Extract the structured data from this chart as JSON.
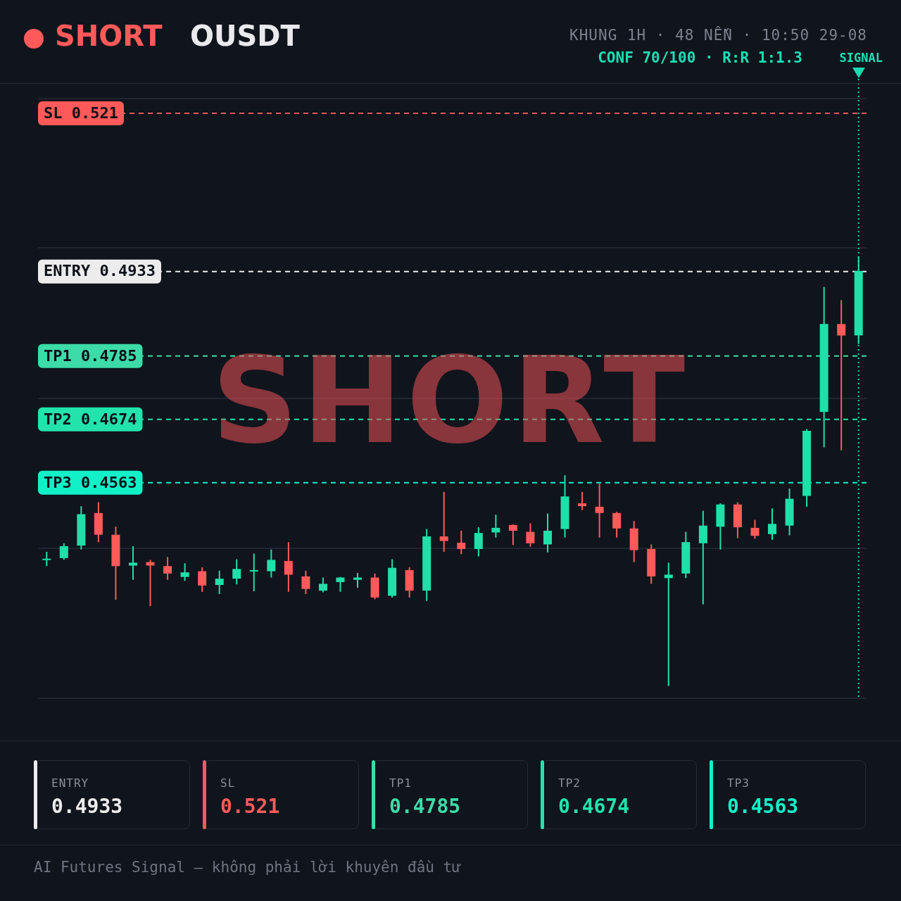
{
  "chart_data": {
    "type": "candlestick",
    "title": "SHORT",
    "subtitle": "OUSDT",
    "categories": [
      null,
      null,
      null,
      null,
      null,
      null,
      null,
      null,
      null,
      null,
      null,
      null,
      null,
      null,
      null,
      null,
      null,
      null,
      null,
      null,
      null,
      null,
      null,
      null,
      null,
      null,
      null,
      null,
      null,
      null,
      null,
      null,
      null,
      null,
      null,
      null,
      null,
      null,
      null,
      null,
      null,
      null,
      null,
      null,
      null,
      null,
      null,
      null
    ],
    "ohlc": [
      [
        0.4429,
        0.4442,
        0.4417,
        0.443
      ],
      [
        0.4431,
        0.4457,
        0.4428,
        0.4452
      ],
      [
        0.4453,
        0.4522,
        0.4446,
        0.4508
      ],
      [
        0.451,
        0.4529,
        0.4459,
        0.4472
      ],
      [
        0.4472,
        0.4486,
        0.4358,
        0.4417
      ],
      [
        0.4418,
        0.4452,
        0.4393,
        0.4423
      ],
      [
        0.4424,
        0.4428,
        0.4347,
        0.4418
      ],
      [
        0.4417,
        0.4433,
        0.4393,
        0.4404
      ],
      [
        0.4398,
        0.4422,
        0.4391,
        0.4406
      ],
      [
        0.4408,
        0.4415,
        0.4372,
        0.4383
      ],
      [
        0.4384,
        0.4409,
        0.4368,
        0.4395
      ],
      [
        0.4395,
        0.4429,
        0.4385,
        0.4412
      ],
      [
        0.4408,
        0.4439,
        0.4373,
        0.441
      ],
      [
        0.4408,
        0.4446,
        0.4397,
        0.4428
      ],
      [
        0.4426,
        0.4459,
        0.4372,
        0.4402
      ],
      [
        0.4399,
        0.4409,
        0.4368,
        0.4377
      ],
      [
        0.4374,
        0.4397,
        0.4371,
        0.4386
      ],
      [
        0.4389,
        0.4398,
        0.4372,
        0.4397
      ],
      [
        0.4393,
        0.4405,
        0.4379,
        0.4397
      ],
      [
        0.4397,
        0.4404,
        0.4359,
        0.4362
      ],
      [
        0.4365,
        0.4429,
        0.4362,
        0.4414
      ],
      [
        0.441,
        0.4415,
        0.4362,
        0.4374
      ],
      [
        0.4374,
        0.4482,
        0.4356,
        0.4469
      ],
      [
        0.4469,
        0.4547,
        0.4442,
        0.4461
      ],
      [
        0.4458,
        0.4479,
        0.4438,
        0.4447
      ],
      [
        0.4447,
        0.4485,
        0.4434,
        0.4475
      ],
      [
        0.4476,
        0.4507,
        0.4467,
        0.4484
      ],
      [
        0.4489,
        0.449,
        0.4454,
        0.4479
      ],
      [
        0.4477,
        0.4492,
        0.4451,
        0.4457
      ],
      [
        0.4455,
        0.4509,
        0.4441,
        0.4479
      ],
      [
        0.4482,
        0.4576,
        0.4467,
        0.4539
      ],
      [
        0.4527,
        0.4547,
        0.4515,
        0.4522
      ],
      [
        0.4521,
        0.4561,
        0.4467,
        0.451
      ],
      [
        0.451,
        0.4512,
        0.4467,
        0.4483
      ],
      [
        0.4483,
        0.4496,
        0.4424,
        0.4445
      ],
      [
        0.4447,
        0.4455,
        0.4386,
        0.4399
      ],
      [
        0.4396,
        0.4423,
        0.4207,
        0.4402
      ],
      [
        0.4404,
        0.4477,
        0.4396,
        0.4459
      ],
      [
        0.4457,
        0.4514,
        0.435,
        0.4488
      ],
      [
        0.4486,
        0.4527,
        0.4446,
        0.4525
      ],
      [
        0.4525,
        0.4529,
        0.4466,
        0.4485
      ],
      [
        0.4484,
        0.4498,
        0.4465,
        0.447
      ],
      [
        0.4473,
        0.4518,
        0.4463,
        0.4491
      ],
      [
        0.4488,
        0.4553,
        0.4471,
        0.4535
      ],
      [
        0.454,
        0.4657,
        0.4521,
        0.4654
      ],
      [
        0.4687,
        0.4906,
        0.4625,
        0.4841
      ],
      [
        0.4841,
        0.4883,
        0.462,
        0.4821
      ],
      [
        0.4821,
        0.4959,
        0.4806,
        0.4934
      ]
    ],
    "colors": [
      "#1fe0a8",
      "#1fe0a8",
      "#1fe0a8",
      "#ff5a5a",
      "#ff5a5a",
      "#1fe0a8",
      "#ff5a5a",
      "#ff5a5a",
      "#1fe0a8",
      "#ff5a5a",
      "#1fe0a8",
      "#1fe0a8",
      "#1fe0a8",
      "#1fe0a8",
      "#ff5a5a",
      "#ff5a5a",
      "#1fe0a8",
      "#1fe0a8",
      "#1fe0a8",
      "#ff5a5a",
      "#1fe0a8",
      "#ff5a5a",
      "#1fe0a8",
      "#ff5a5a",
      "#ff5a5a",
      "#1fe0a8",
      "#1fe0a8",
      "#ff5a5a",
      "#ff5a5a",
      "#1fe0a8",
      "#1fe0a8",
      "#ff5a5a",
      "#ff5a5a",
      "#ff5a5a",
      "#ff5a5a",
      "#ff5a5a",
      "#1fe0a8",
      "#1fe0a8",
      "#1fe0a8",
      "#1fe0a8",
      "#ff5a5a",
      "#ff5a5a",
      "#1fe0a8",
      "#1fe0a8",
      "#1fe0a8",
      "#1fe0a8",
      "#ff5a5a",
      "#1fe0a8"
    ],
    "ylim": [
      0.4186,
      0.5236
    ],
    "yticks": [
      {
        "value": 0.4186,
        "label": null
      },
      {
        "value": 0.4448,
        "label": null
      },
      {
        "value": 0.4711,
        "label": null
      },
      {
        "value": 0.4974,
        "label": null
      },
      {
        "value": 0.5236,
        "label": null
      }
    ],
    "grid": "y",
    "legend": false,
    "ref_lines": [
      {
        "axis": "y",
        "value": 0.4933,
        "label": "ENTRY 0.4933",
        "color": "#ececec",
        "line_style": "dashed"
      },
      {
        "axis": "y",
        "value": 0.521,
        "label": "SL 0.521",
        "color": "#ff5a5a",
        "line_style": "dashed"
      },
      {
        "axis": "y",
        "value": 0.4785,
        "label": "TP1 0.4785",
        "color": "#3ddba8",
        "line_style": "dashed"
      },
      {
        "axis": "y",
        "value": 0.4674,
        "label": "TP2 0.4674",
        "color": "#22e3ac",
        "line_style": "dashed"
      },
      {
        "axis": "y",
        "value": 0.4563,
        "label": "TP3 0.4563",
        "color": "#12f0c8",
        "line_style": "dashed"
      }
    ],
    "annotations": [
      "KHUNG 1H · 48 NẾN · 10:50 29-08",
      "CONF 70/100 · R:R 1:1.3",
      "SHORT",
      "AI Futures Signal — không phải lời khuyên đầu tư",
      "SIGNAL"
    ]
  }
}
